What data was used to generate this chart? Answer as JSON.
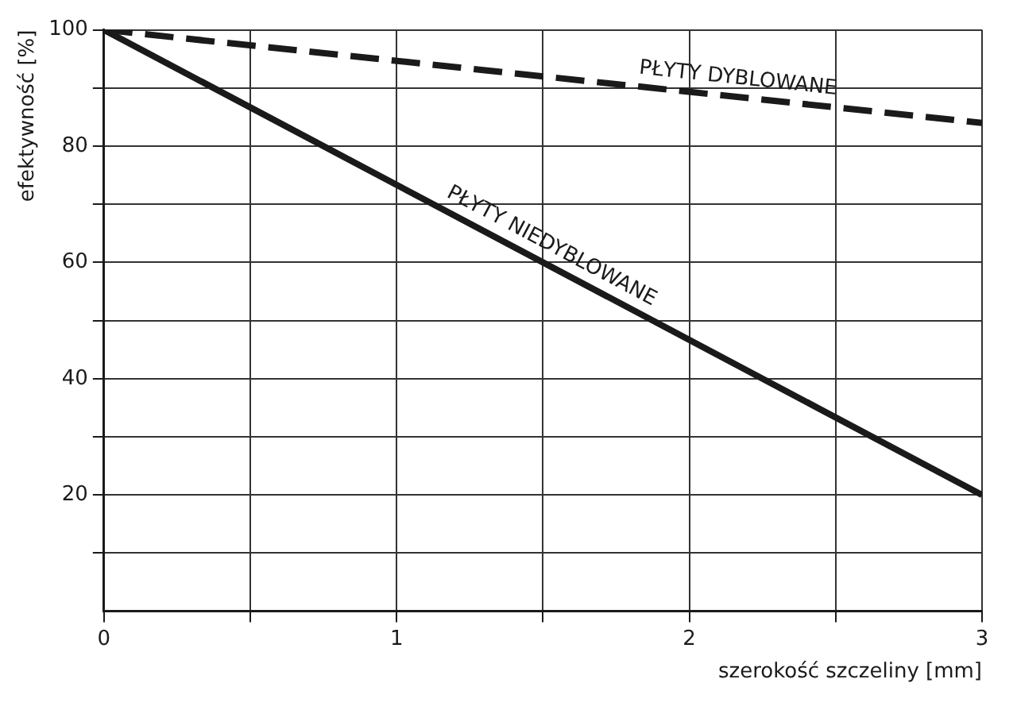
{
  "chart_data": {
    "type": "line",
    "xlabel": "szerokość szczeliny [mm]",
    "ylabel": "efektywność [%]",
    "x": [
      0,
      3
    ],
    "series": [
      {
        "name": "PŁYTY DYBLOWANE",
        "color": "#1a1a1a",
        "values": [
          100,
          84
        ],
        "line_style": "dashed"
      },
      {
        "name": "PŁYTY NIEDYBLOWANE",
        "color": "#1a1a1a",
        "values": [
          100,
          20
        ],
        "line_style": "solid"
      }
    ],
    "xlim": [
      0,
      3
    ],
    "ylim": [
      0,
      100
    ],
    "xticks": [
      0,
      {
        "value": 0.5,
        "label": null
      },
      1,
      {
        "value": 1.5,
        "label": null
      },
      2,
      {
        "value": 2.5,
        "label": null
      },
      3
    ],
    "yticks": [
      {
        "value": 10,
        "label": null
      },
      20,
      {
        "value": 30,
        "label": null
      },
      40,
      {
        "value": 50,
        "label": null
      },
      60,
      {
        "value": 70,
        "label": null
      },
      80,
      {
        "value": 90,
        "label": null
      },
      100
    ],
    "grid": true,
    "legend": false,
    "marker": "none"
  }
}
